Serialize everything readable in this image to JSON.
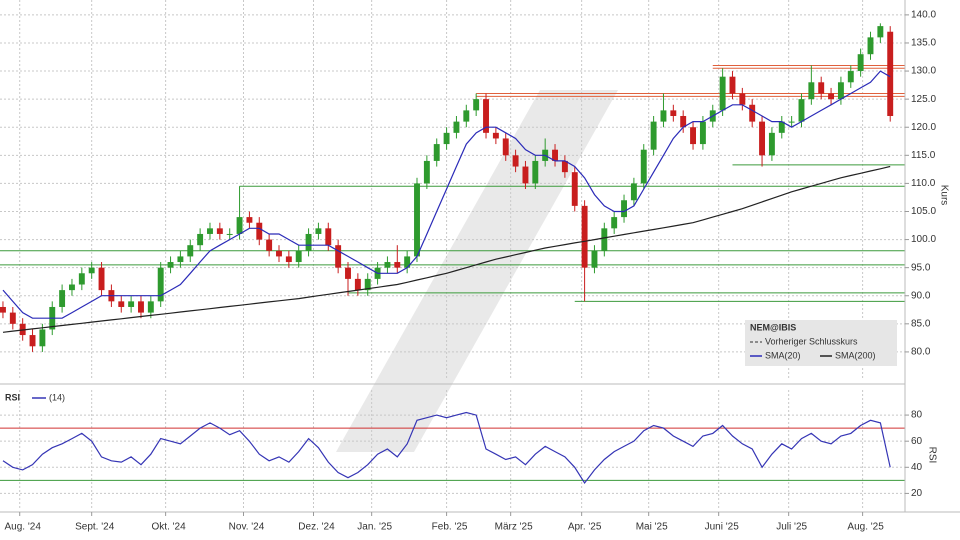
{
  "chart_data": [
    {
      "type": "candlestick",
      "y_label": "Kurs",
      "legend_title": "NEM@IBIS",
      "previous_close_label": "Vorheriger Schlusskurs",
      "up_color": "#2e9a2e",
      "down_color": "#c81e1e",
      "grid": true,
      "xlim": [
        -0.3,
        91.5
      ],
      "xticks": [
        {
          "value": 1.7,
          "label": "Aug. '24"
        },
        {
          "value": 9,
          "label": "Sept. '24"
        },
        {
          "value": 16.5,
          "label": "Okt. '24"
        },
        {
          "value": 24.4,
          "label": "Nov. '24"
        },
        {
          "value": 31.5,
          "label": "Dez. '24"
        },
        {
          "value": 37.4,
          "label": "Jan. '25"
        },
        {
          "value": 45,
          "label": "Feb. '25"
        },
        {
          "value": 51.5,
          "label": "März '25"
        },
        {
          "value": 58.7,
          "label": "Apr. '25"
        },
        {
          "value": 65.5,
          "label": "Mai '25"
        },
        {
          "value": 72.6,
          "label": "Juni '25"
        },
        {
          "value": 79.7,
          "label": "Juli '25"
        },
        {
          "value": 87.2,
          "label": "Aug. '25"
        }
      ],
      "ylim": [
        75,
        142.65
      ],
      "yticks": [
        {
          "value": 80,
          "label": "80.0"
        },
        {
          "value": 85,
          "label": "85.0"
        },
        {
          "value": 90,
          "label": "90.0"
        },
        {
          "value": 95,
          "label": "95.0"
        },
        {
          "value": 100,
          "label": "100.0"
        },
        {
          "value": 105,
          "label": "105.0"
        },
        {
          "value": 110,
          "label": "110.0"
        },
        {
          "value": 115,
          "label": "115.0"
        },
        {
          "value": 120,
          "label": "120.0"
        },
        {
          "value": 125,
          "label": "125.0"
        },
        {
          "value": 130,
          "label": "130.0"
        },
        {
          "value": 135,
          "label": "135.0"
        },
        {
          "value": 140,
          "label": "140.0"
        }
      ],
      "open": [
        88,
        87,
        85,
        83,
        81,
        84,
        88,
        91,
        92,
        94,
        95,
        91,
        89,
        88,
        89,
        87,
        89,
        95,
        96,
        97,
        99,
        101,
        102,
        101,
        101,
        104,
        103,
        100,
        98,
        97,
        96,
        98,
        101,
        102,
        99,
        95,
        93,
        91,
        93,
        95,
        96,
        95,
        97,
        110,
        114,
        117,
        119,
        121,
        123,
        125,
        119,
        118,
        115,
        113,
        110,
        114,
        116,
        114,
        112,
        106,
        95,
        98,
        102,
        104,
        107,
        110,
        116,
        121,
        123,
        122,
        120,
        117,
        121,
        123,
        129,
        126,
        124,
        121,
        115,
        119,
        121,
        121,
        125,
        128,
        126,
        125,
        128,
        130,
        133,
        136,
        137
      ],
      "high": [
        89,
        88,
        86,
        84,
        85,
        89,
        92,
        93,
        95,
        96,
        96,
        92,
        90,
        90,
        90,
        90,
        96,
        97,
        98,
        100,
        102,
        103,
        103,
        102,
        109.5,
        105,
        104,
        101,
        99,
        98,
        99,
        102,
        103,
        103,
        100,
        96,
        94,
        94,
        96,
        97,
        99,
        98,
        111,
        115,
        118,
        120,
        122,
        124,
        126,
        126,
        120,
        119,
        116,
        114,
        115,
        118,
        117,
        115,
        113,
        107,
        99,
        103,
        105,
        108,
        111,
        117,
        122,
        126,
        124,
        123,
        121,
        122,
        124,
        130.5,
        130,
        127,
        125,
        122,
        120,
        122,
        122,
        126,
        131,
        129,
        127,
        129,
        131,
        134,
        137,
        138.5,
        138
      ],
      "low": [
        86,
        84,
        82,
        80,
        80,
        83,
        87,
        90,
        91,
        93,
        90,
        88,
        87,
        87,
        86,
        86,
        88,
        94,
        95,
        96,
        98,
        100,
        100,
        100,
        100,
        102,
        99,
        97,
        96,
        95,
        95,
        97,
        100,
        98,
        94,
        90,
        90,
        90,
        92,
        94,
        94,
        94,
        96,
        109,
        113,
        116,
        118,
        120,
        122,
        118,
        117,
        114,
        112,
        109,
        109,
        113,
        113,
        111,
        105,
        89,
        94,
        97,
        101,
        103,
        106,
        109,
        115,
        120,
        121,
        119,
        116,
        116,
        120,
        122,
        125,
        123,
        120,
        113,
        114,
        118,
        120,
        120,
        124,
        125,
        124,
        124,
        127,
        129,
        132,
        135,
        121
      ],
      "close": [
        87,
        85,
        83,
        81,
        84,
        88,
        91,
        92,
        94,
        95,
        91,
        89,
        88,
        89,
        87,
        89,
        95,
        96,
        97,
        99,
        101,
        102,
        101,
        101,
        104,
        103,
        100,
        98,
        97,
        96,
        98,
        101,
        102,
        99,
        95,
        93,
        91,
        93,
        95,
        96,
        95,
        97,
        110,
        114,
        117,
        119,
        121,
        123,
        125,
        119,
        118,
        115,
        113,
        110,
        114,
        116,
        114,
        112,
        106,
        95,
        98,
        102,
        104,
        107,
        110,
        116,
        121,
        123,
        122,
        120,
        117,
        121,
        123,
        129,
        126,
        124,
        121,
        115,
        119,
        121,
        121,
        125,
        128,
        126,
        125,
        128,
        130,
        133,
        136,
        138,
        122
      ],
      "series": [
        {
          "name": "SMA(20)",
          "color": "#2b2bb8",
          "values": [
            91,
            89,
            87,
            86,
            86,
            86,
            86,
            87,
            88,
            89,
            90,
            90,
            90,
            90,
            90,
            90,
            90,
            91,
            92,
            94,
            96,
            98,
            99,
            100,
            101,
            102,
            102,
            101,
            101,
            100,
            99,
            99,
            99,
            99,
            98,
            97,
            96,
            95,
            94,
            94,
            94,
            95,
            97,
            101,
            105,
            109,
            113,
            117,
            119,
            120,
            120,
            119,
            118,
            116,
            115,
            115,
            114,
            114,
            113,
            111,
            108,
            106,
            105,
            105,
            106,
            109,
            112,
            115,
            118,
            120,
            121,
            121,
            122,
            123,
            124,
            124,
            123,
            122,
            121,
            121,
            120,
            121,
            122,
            123,
            124,
            125,
            126,
            127,
            128,
            130,
            129
          ]
        },
        {
          "name": "SMA(200)",
          "color": "#222222",
          "values": [
            83.5,
            83.7,
            83.9,
            84.1,
            84.3,
            84.5,
            84.7,
            84.9,
            85.1,
            85.3,
            85.5,
            85.7,
            85.9,
            86.1,
            86.3,
            86.5,
            86.7,
            86.9,
            87.1,
            87.3,
            87.5,
            87.7,
            87.9,
            88.1,
            88.3,
            88.5,
            88.7,
            88.9,
            89.1,
            89.3,
            89.5,
            89.75,
            90,
            90.25,
            90.5,
            90.75,
            91,
            91.25,
            91.5,
            91.75,
            92,
            92.4,
            92.8,
            93.2,
            93.6,
            94,
            94.5,
            95,
            95.5,
            96,
            96.5,
            96.9,
            97.3,
            97.7,
            98.1,
            98.5,
            98.8,
            99.1,
            99.4,
            99.7,
            100,
            100.3,
            100.6,
            100.9,
            101.2,
            101.5,
            101.8,
            102.1,
            102.4,
            102.7,
            103,
            103.5,
            104,
            104.5,
            105,
            105.5,
            106.1,
            106.7,
            107.3,
            107.9,
            108.5,
            109,
            109.5,
            110,
            110.5,
            111,
            111.4,
            111.8,
            112.2,
            112.6,
            113
          ]
        }
      ],
      "levels": [
        {
          "value": 109.5,
          "from": 24,
          "color": "#3c9a3c"
        },
        {
          "value": 98,
          "from": -0.3,
          "color": "#3c9a3c"
        },
        {
          "value": 95.5,
          "from": -0.3,
          "color": "#3c9a3c"
        },
        {
          "value": 90.5,
          "from": 35,
          "color": "#3c9a3c"
        },
        {
          "value": 89,
          "from": 58,
          "color": "#3c9a3c"
        },
        {
          "value": 113.3,
          "from": 74,
          "color": "#3c9a3c"
        },
        {
          "value": 126,
          "from": 48,
          "color": "#e0603c"
        },
        {
          "value": 125.5,
          "from": 48,
          "color": "#e0603c"
        },
        {
          "value": 131,
          "from": 72,
          "color": "#e0603c"
        },
        {
          "value": 130.5,
          "from": 72,
          "color": "#e0603c"
        }
      ]
    },
    {
      "type": "line",
      "title": "RSI",
      "y_label": "RSI",
      "grid": true,
      "ylim": [
        7.3,
        99.2
      ],
      "yticks": [
        20,
        40,
        60,
        80
      ],
      "levels": [
        {
          "value": 70,
          "color": "#d03030"
        },
        {
          "value": 30,
          "color": "#3c9a3c"
        }
      ],
      "series": [
        {
          "name": "(14)",
          "color": "#3535b5",
          "values": [
            45,
            40,
            38,
            42,
            50,
            55,
            58,
            62,
            66,
            60,
            48,
            45,
            44,
            48,
            42,
            50,
            62,
            60,
            58,
            64,
            70,
            74,
            70,
            65,
            68,
            60,
            50,
            45,
            48,
            44,
            52,
            62,
            55,
            44,
            36,
            32,
            36,
            42,
            50,
            54,
            48,
            58,
            76,
            78,
            80,
            78,
            80,
            82,
            80,
            54,
            50,
            46,
            48,
            42,
            50,
            56,
            52,
            48,
            40,
            28,
            38,
            46,
            52,
            56,
            60,
            68,
            72,
            70,
            64,
            60,
            56,
            64,
            66,
            72,
            64,
            58,
            54,
            40,
            50,
            58,
            54,
            62,
            66,
            60,
            58,
            64,
            66,
            72,
            76,
            74,
            40
          ]
        }
      ]
    }
  ]
}
